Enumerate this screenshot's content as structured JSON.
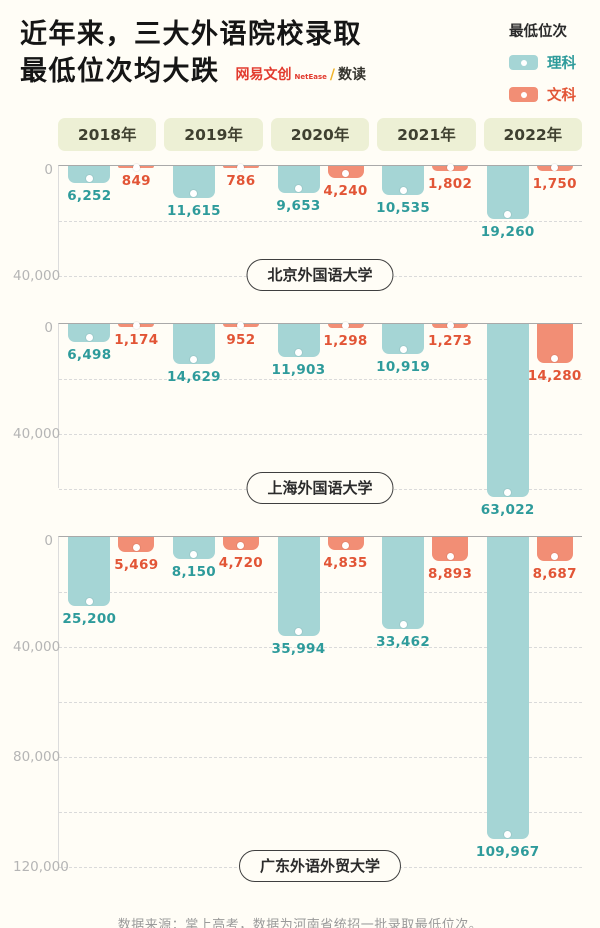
{
  "header": {
    "title_line1": "近年来，三大外语院校录取",
    "title_line2": "最低位次均大跌",
    "logo": {
      "brand": "网易文创",
      "brand_en": "NetEase",
      "separator": "/",
      "product": "数读"
    }
  },
  "legend": {
    "title": "最低位次",
    "items": [
      {
        "label": "理科",
        "color": "#a5d5d5",
        "text_color": "#2e9b9b"
      },
      {
        "label": "文科",
        "color": "#f28e75",
        "text_color": "#e25536"
      }
    ]
  },
  "years": [
    "2018年",
    "2019年",
    "2020年",
    "2021年",
    "2022年"
  ],
  "chart_data": [
    {
      "type": "bar",
      "title": "北京外国语大学",
      "orientation": "downward",
      "categories": [
        "2018年",
        "2019年",
        "2020年",
        "2021年",
        "2022年"
      ],
      "series": [
        {
          "name": "理科",
          "color": "#a5d5d5",
          "label_color": "#2e9b9b",
          "values": [
            6252,
            11615,
            9653,
            10535,
            19260
          ]
        },
        {
          "name": "文科",
          "color": "#f28e75",
          "label_color": "#e25536",
          "values": [
            849,
            786,
            4240,
            1802,
            1750
          ]
        }
      ],
      "ylim": [
        0,
        40000
      ],
      "grid": "dashed",
      "ticks": [
        {
          "value": 0,
          "label": "0"
        },
        {
          "value": 20000,
          "label": ""
        },
        {
          "value": 40000,
          "label": "40,000"
        }
      ]
    },
    {
      "type": "bar",
      "title": "上海外国语大学",
      "orientation": "downward",
      "categories": [
        "2018年",
        "2019年",
        "2020年",
        "2021年",
        "2022年"
      ],
      "series": [
        {
          "name": "理科",
          "color": "#a5d5d5",
          "label_color": "#2e9b9b",
          "values": [
            6498,
            14629,
            11903,
            10919,
            63022
          ]
        },
        {
          "name": "文科",
          "color": "#f28e75",
          "label_color": "#e25536",
          "values": [
            1174,
            952,
            1298,
            1273,
            14280
          ]
        }
      ],
      "ylim": [
        0,
        60000
      ],
      "grid": "dashed",
      "ticks": [
        {
          "value": 0,
          "label": "0"
        },
        {
          "value": 20000,
          "label": ""
        },
        {
          "value": 40000,
          "label": "40,000"
        },
        {
          "value": 60000,
          "label": ""
        }
      ]
    },
    {
      "type": "bar",
      "title": "广东外语外贸大学",
      "orientation": "downward",
      "categories": [
        "2018年",
        "2019年",
        "2020年",
        "2021年",
        "2022年"
      ],
      "series": [
        {
          "name": "理科",
          "color": "#a5d5d5",
          "label_color": "#2e9b9b",
          "values": [
            25200,
            8150,
            35994,
            33462,
            109967
          ]
        },
        {
          "name": "文科",
          "color": "#f28e75",
          "label_color": "#e25536",
          "values": [
            5469,
            4720,
            4835,
            8893,
            8687
          ]
        }
      ],
      "ylim": [
        0,
        120000
      ],
      "grid": "dashed",
      "ticks": [
        {
          "value": 0,
          "label": "0"
        },
        {
          "value": 20000,
          "label": ""
        },
        {
          "value": 40000,
          "label": "40,000"
        },
        {
          "value": 60000,
          "label": ""
        },
        {
          "value": 80000,
          "label": "80,000"
        },
        {
          "value": 100000,
          "label": ""
        },
        {
          "value": 120000,
          "label": "120,000"
        }
      ]
    }
  ],
  "footer": {
    "source": "数据来源：掌上高考，数据为河南省统招一批录取最低位次。"
  }
}
